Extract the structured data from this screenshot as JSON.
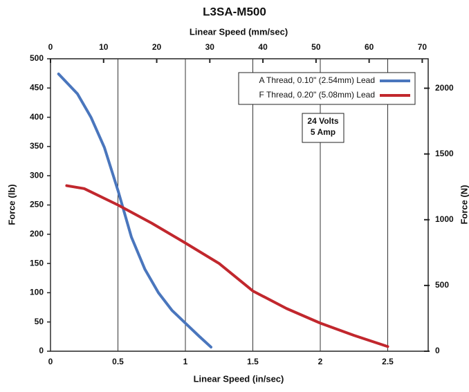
{
  "chart_data": {
    "type": "line",
    "title": "L3SA-M500",
    "xlabel": "Linear Speed (in/sec)",
    "x2label": "Linear Speed (mm/sec)",
    "ylabel": "Force (lb)",
    "y2label": "Force (N)",
    "xlim": [
      0,
      2.8
    ],
    "xticks": [
      0,
      0.5,
      1,
      1.5,
      2,
      2.5
    ],
    "x2lim": [
      0,
      71.12
    ],
    "x2ticks": [
      0,
      10,
      20,
      30,
      40,
      50,
      60,
      70
    ],
    "ylim": [
      0,
      500
    ],
    "yticks": [
      0,
      50,
      100,
      150,
      200,
      250,
      300,
      350,
      400,
      450,
      500
    ],
    "y2lim": [
      0,
      2224
    ],
    "y2ticks": [
      0,
      500,
      1000,
      1500,
      2000
    ],
    "grid": "x",
    "legend": "upper right",
    "annotation": [
      "24 Volts",
      "5 Amp"
    ],
    "series": [
      {
        "name": "A Thread, 0.10\" (2.54mm) Lead",
        "color": "#4a76bd",
        "x": [
          0.06,
          0.2,
          0.3,
          0.4,
          0.5,
          0.6,
          0.7,
          0.8,
          0.9,
          1.0,
          1.1,
          1.19
        ],
        "values": [
          474,
          440,
          400,
          348,
          275,
          195,
          140,
          100,
          70,
          48,
          26,
          7
        ]
      },
      {
        "name": "F Thread, 0.20\" (5.08mm) Lead",
        "color": "#c1272d",
        "x": [
          0.12,
          0.25,
          0.5,
          0.75,
          1.0,
          1.25,
          1.5,
          1.75,
          2.0,
          2.25,
          2.5
        ],
        "values": [
          283,
          278,
          250,
          219,
          185,
          150,
          103,
          73,
          48,
          27,
          8
        ]
      }
    ]
  }
}
